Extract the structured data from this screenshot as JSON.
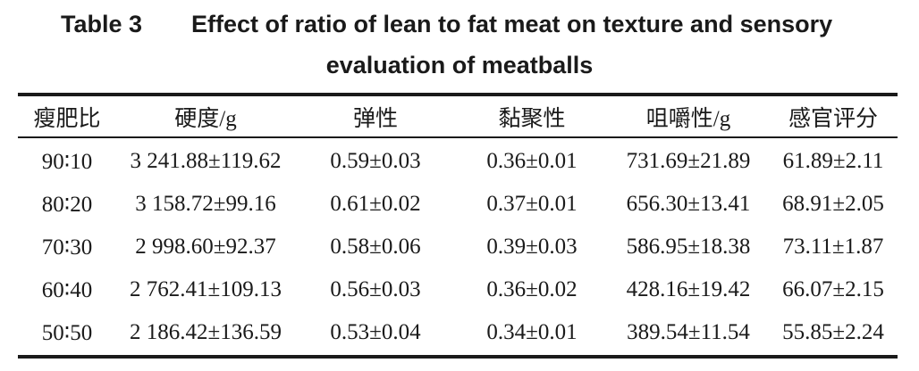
{
  "caption": {
    "label": "Table 3",
    "title_line1": "Effect of ratio of lean to fat meat on texture and sensory",
    "title_line2": "evaluation of meatballs"
  },
  "table": {
    "headers": [
      "瘦肥比",
      "硬度/g",
      "弹性",
      "黏聚性",
      "咀嚼性/g",
      "感官评分"
    ],
    "rows": [
      [
        "90∶10",
        "3 241.88±119.62",
        "0.59±0.03",
        "0.36±0.01",
        "731.69±21.89",
        "61.89±2.11"
      ],
      [
        "80∶20",
        "3 158.72±99.16",
        "0.61±0.02",
        "0.37±0.01",
        "656.30±13.41",
        "68.91±2.05"
      ],
      [
        "70∶30",
        "2 998.60±92.37",
        "0.58±0.06",
        "0.39±0.03",
        "586.95±18.38",
        "73.11±1.87"
      ],
      [
        "60∶40",
        "2 762.41±109.13",
        "0.56±0.03",
        "0.36±0.02",
        "428.16±19.42",
        "66.07±2.15"
      ],
      [
        "50∶50",
        "2 186.42±136.59",
        "0.53±0.04",
        "0.34±0.01",
        "389.54±11.54",
        "55.85±2.24"
      ]
    ]
  }
}
